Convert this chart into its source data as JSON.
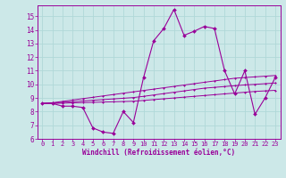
{
  "xlabel": "Windchill (Refroidissement éolien,°C)",
  "x_values": [
    0,
    1,
    2,
    3,
    4,
    5,
    6,
    7,
    8,
    9,
    10,
    11,
    12,
    13,
    14,
    15,
    16,
    17,
    18,
    19,
    20,
    21,
    22,
    23
  ],
  "line1_y": [
    8.6,
    8.6,
    8.4,
    8.4,
    8.3,
    6.8,
    6.5,
    6.4,
    8.0,
    7.2,
    10.5,
    13.2,
    14.1,
    15.5,
    13.6,
    13.9,
    14.25,
    14.1,
    11.0,
    9.3,
    11.0,
    7.8,
    9.0,
    10.5
  ],
  "line2_y": [
    8.6,
    8.65,
    8.75,
    8.85,
    8.95,
    9.05,
    9.15,
    9.25,
    9.35,
    9.45,
    9.55,
    9.65,
    9.75,
    9.85,
    9.95,
    10.05,
    10.15,
    10.25,
    10.35,
    10.45,
    10.5,
    10.55,
    10.6,
    10.65
  ],
  "line3_y": [
    8.6,
    8.63,
    8.68,
    8.73,
    8.78,
    8.83,
    8.88,
    8.93,
    8.98,
    9.03,
    9.12,
    9.22,
    9.32,
    9.42,
    9.52,
    9.62,
    9.72,
    9.78,
    9.84,
    9.9,
    9.96,
    10.0,
    10.05,
    10.1
  ],
  "line4_y": [
    8.6,
    8.6,
    8.62,
    8.64,
    8.66,
    8.68,
    8.7,
    8.72,
    8.74,
    8.76,
    8.82,
    8.88,
    8.94,
    9.0,
    9.06,
    9.12,
    9.18,
    9.24,
    9.3,
    9.36,
    9.42,
    9.48,
    9.52,
    9.56
  ],
  "line_color": "#990099",
  "bg_color": "#cce8e8",
  "grid_color": "#b0d8d8",
  "ylim": [
    6,
    15.8
  ],
  "xlim": [
    -0.5,
    23.5
  ],
  "yticks": [
    6,
    7,
    8,
    9,
    10,
    11,
    12,
    13,
    14,
    15
  ],
  "xticks": [
    0,
    1,
    2,
    3,
    4,
    5,
    6,
    7,
    8,
    9,
    10,
    11,
    12,
    13,
    14,
    15,
    16,
    17,
    18,
    19,
    20,
    21,
    22,
    23
  ]
}
